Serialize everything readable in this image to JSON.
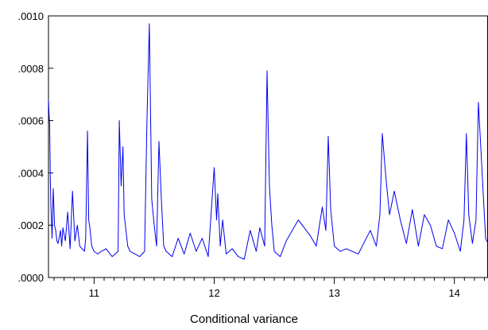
{
  "chart_data": {
    "type": "line",
    "title": "",
    "caption": "Conditional variance",
    "xlabel": "",
    "ylabel": "",
    "xlim": [
      10.62,
      14.28
    ],
    "ylim": [
      0,
      0.001
    ],
    "y_ticks": [
      0,
      0.0002,
      0.0004,
      0.0006,
      0.0008,
      0.001
    ],
    "y_tick_labels": [
      ".0000",
      ".0002",
      ".0004",
      ".0006",
      ".0008",
      ".0010"
    ],
    "x_ticks": [
      11,
      12,
      13,
      14
    ],
    "x_tick_labels": [
      "11",
      "12",
      "13",
      "14"
    ],
    "grid": false,
    "line_color": "#0000ee",
    "series": [
      {
        "x": [
          10.62,
          10.625,
          10.63,
          10.635,
          10.64,
          10.65,
          10.66,
          10.67,
          10.68,
          10.69,
          10.7,
          10.72,
          10.73,
          10.74,
          10.76,
          10.78,
          10.8,
          10.82,
          10.84,
          10.86,
          10.88,
          10.9,
          10.92,
          10.93,
          10.945,
          10.955,
          10.965,
          10.98,
          11.0,
          11.03,
          11.06,
          11.1,
          11.15,
          11.2,
          11.21,
          11.225,
          11.24,
          11.25,
          11.265,
          11.28,
          11.3,
          11.34,
          11.38,
          11.42,
          11.44,
          11.46,
          11.48,
          11.5,
          11.52,
          11.54,
          11.56,
          11.58,
          11.6,
          11.65,
          11.7,
          11.75,
          11.8,
          11.85,
          11.9,
          11.95,
          12.0,
          12.02,
          12.03,
          12.05,
          12.07,
          12.1,
          12.15,
          12.2,
          12.25,
          12.3,
          12.35,
          12.38,
          12.42,
          12.44,
          12.46,
          12.48,
          12.5,
          12.55,
          12.6,
          12.7,
          12.8,
          12.85,
          12.9,
          12.93,
          12.95,
          12.97,
          13.0,
          13.05,
          13.1,
          13.2,
          13.3,
          13.35,
          13.38,
          13.4,
          13.43,
          13.46,
          13.5,
          13.55,
          13.6,
          13.65,
          13.7,
          13.75,
          13.8,
          13.85,
          13.9,
          13.95,
          14.0,
          14.05,
          14.08,
          14.1,
          14.12,
          14.15,
          14.18,
          14.2,
          14.22,
          14.24,
          14.26,
          14.28
        ],
        "y": [
          0.00068,
          0.00062,
          0.00058,
          0.00038,
          0.00028,
          0.00015,
          0.00034,
          0.0002,
          0.00018,
          0.00014,
          0.00013,
          0.00018,
          0.00012,
          0.00019,
          0.00014,
          0.00025,
          0.00011,
          0.00033,
          0.00014,
          0.0002,
          0.00012,
          0.00011,
          0.0001,
          0.00015,
          0.00056,
          0.00022,
          0.00019,
          0.00012,
          0.0001,
          9e-05,
          0.0001,
          0.00011,
          8e-05,
          0.0001,
          0.0006,
          0.00035,
          0.0005,
          0.00024,
          0.00018,
          0.00012,
          0.0001,
          9e-05,
          8e-05,
          0.0001,
          0.0006,
          0.00097,
          0.0003,
          0.0002,
          0.00012,
          0.00052,
          0.0003,
          0.00012,
          0.0001,
          8e-05,
          0.00015,
          9e-05,
          0.00017,
          0.0001,
          0.00015,
          8e-05,
          0.00042,
          0.00022,
          0.00032,
          0.00012,
          0.00022,
          9e-05,
          0.00011,
          8e-05,
          7e-05,
          0.00018,
          0.0001,
          0.00019,
          0.00012,
          0.00079,
          0.00035,
          0.0002,
          0.0001,
          8e-05,
          0.00014,
          0.00022,
          0.00016,
          0.00012,
          0.00027,
          0.00018,
          0.00054,
          0.00026,
          0.00012,
          0.0001,
          0.00011,
          9e-05,
          0.00018,
          0.00012,
          0.00024,
          0.00055,
          0.00038,
          0.00024,
          0.00033,
          0.00022,
          0.00013,
          0.00026,
          0.00012,
          0.00024,
          0.0002,
          0.00012,
          0.00011,
          0.00022,
          0.00017,
          0.0001,
          0.00022,
          0.00055,
          0.00024,
          0.00013,
          0.00022,
          0.00067,
          0.0005,
          0.00032,
          0.00015,
          0.00013
        ]
      }
    ]
  }
}
